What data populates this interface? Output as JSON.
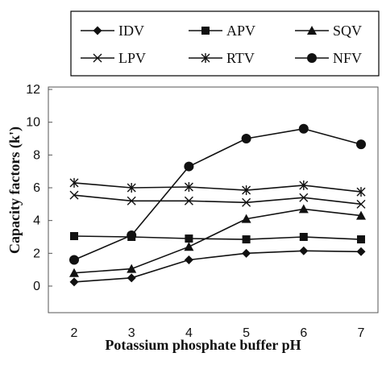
{
  "chart_data": {
    "type": "line",
    "xlabel": "Potassium phosphate buffer pH",
    "ylabel": "Capacity factors (k')",
    "x": [
      2,
      3,
      4,
      5,
      6,
      7
    ],
    "xlim": [
      1.5,
      7.5
    ],
    "ylim": [
      0,
      12
    ],
    "yticks": [
      0,
      2,
      4,
      6,
      8,
      10,
      12
    ],
    "xticks": [
      2,
      3,
      4,
      5,
      6,
      7
    ],
    "grid": false,
    "legend_position": "top",
    "series": [
      {
        "name": "IDV",
        "marker": "diamond",
        "values": [
          0.25,
          0.5,
          1.6,
          2.0,
          2.15,
          2.1
        ]
      },
      {
        "name": "APV",
        "marker": "square",
        "values": [
          3.05,
          3.0,
          2.9,
          2.85,
          3.0,
          2.85
        ]
      },
      {
        "name": "SQV",
        "marker": "triangle",
        "values": [
          0.8,
          1.05,
          2.4,
          4.1,
          4.7,
          4.3
        ]
      },
      {
        "name": "LPV",
        "marker": "x",
        "values": [
          5.55,
          5.2,
          5.2,
          5.1,
          5.4,
          5.0
        ]
      },
      {
        "name": "RTV",
        "marker": "asterisk",
        "values": [
          6.3,
          6.0,
          6.05,
          5.85,
          6.15,
          5.75
        ]
      },
      {
        "name": "NFV",
        "marker": "circle",
        "values": [
          1.6,
          3.1,
          7.3,
          9.0,
          9.6,
          8.65
        ]
      }
    ],
    "line_color": "#111111"
  }
}
